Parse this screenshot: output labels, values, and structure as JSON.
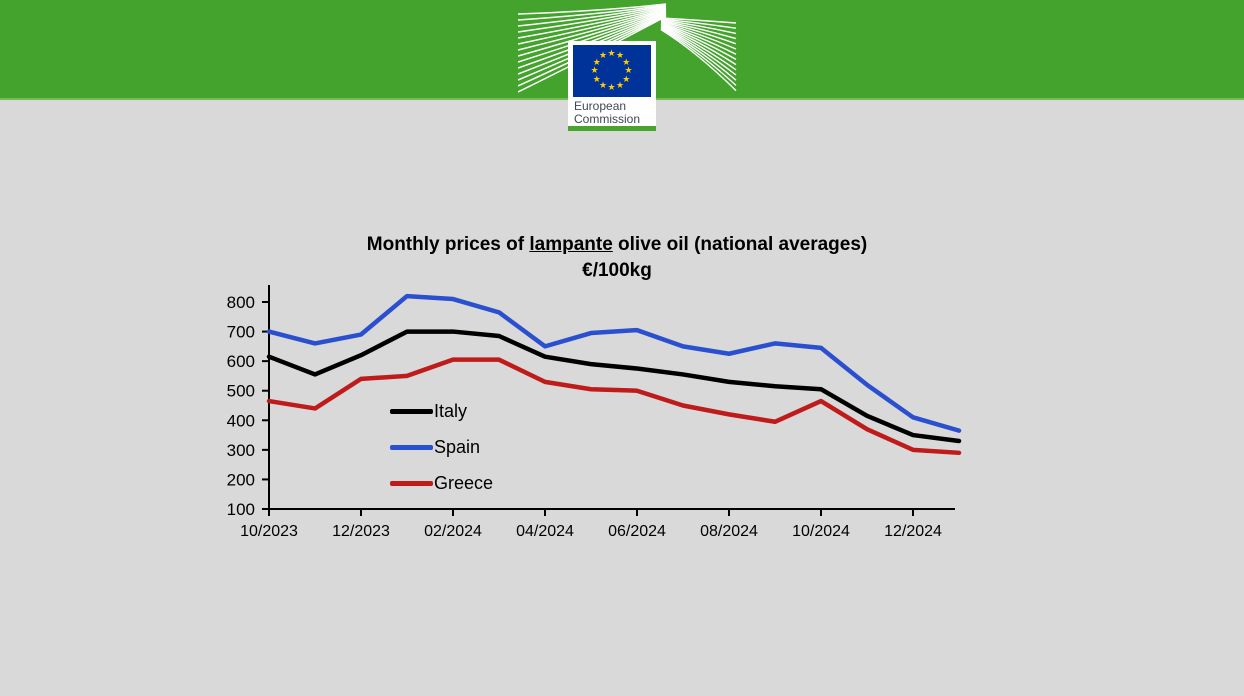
{
  "page": {
    "background": "#d9d9d9",
    "header_green": "#43a32c"
  },
  "header": {
    "logo": {
      "institution_line1": "European",
      "institution_line2": "Commission",
      "flag_blue": "#003399",
      "star_yellow": "#ffcc00",
      "text_color": "#3d4a56"
    }
  },
  "chart_data": {
    "type": "line",
    "title_prefix": "Monthly prices of ",
    "title_underlined": "lampante",
    "title_suffix": " olive oil (national averages)",
    "subtitle": "€/100kg",
    "categories": [
      "10/2023",
      "11/2023",
      "12/2023",
      "01/2024",
      "02/2024",
      "03/2024",
      "04/2024",
      "05/2024",
      "06/2024",
      "07/2024",
      "08/2024",
      "09/2024",
      "10/2024",
      "11/2024",
      "12/2024",
      "01/2025"
    ],
    "series": [
      {
        "name": "Italy",
        "color": "#000000",
        "values": [
          615,
          555,
          620,
          700,
          700,
          685,
          615,
          590,
          575,
          555,
          530,
          515,
          505,
          415,
          350,
          330
        ]
      },
      {
        "name": "Spain",
        "color": "#2a50cf",
        "values": [
          700,
          660,
          690,
          820,
          810,
          765,
          650,
          695,
          705,
          650,
          625,
          660,
          645,
          520,
          410,
          365
        ]
      },
      {
        "name": "Greece",
        "color": "#bf1b1b",
        "values": [
          465,
          440,
          540,
          550,
          605,
          605,
          530,
          505,
          500,
          450,
          420,
          395,
          465,
          370,
          300,
          290
        ]
      }
    ],
    "ylim": [
      100,
      800
    ],
    "y_ticks": [
      800,
      700,
      600,
      500,
      400,
      300,
      200,
      100
    ],
    "x_tick_labels": [
      "10/2023",
      "12/2023",
      "02/2024",
      "04/2024",
      "06/2024",
      "08/2024",
      "10/2024",
      "12/2024"
    ],
    "x_tick_step": 2,
    "grid": false,
    "legend_position": "inside-left"
  }
}
